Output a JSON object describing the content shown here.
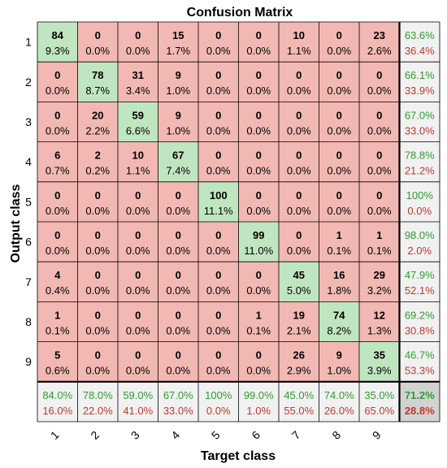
{
  "chart_data": {
    "type": "heatmap",
    "title": "Confusion Matrix",
    "xlabel": "Target class",
    "ylabel": "Output class",
    "x_tick_labels": [
      "1",
      "2",
      "3",
      "4",
      "5",
      "6",
      "7",
      "8",
      "9"
    ],
    "y_tick_labels": [
      "1",
      "2",
      "3",
      "4",
      "5",
      "6",
      "7",
      "8",
      "9"
    ],
    "counts": [
      [
        84,
        0,
        0,
        15,
        0,
        0,
        10,
        0,
        23
      ],
      [
        0,
        78,
        31,
        9,
        0,
        0,
        0,
        0,
        0
      ],
      [
        0,
        20,
        59,
        9,
        0,
        0,
        0,
        0,
        0
      ],
      [
        6,
        2,
        10,
        67,
        0,
        0,
        0,
        0,
        0
      ],
      [
        0,
        0,
        0,
        0,
        100,
        0,
        0,
        0,
        0
      ],
      [
        0,
        0,
        0,
        0,
        0,
        99,
        0,
        1,
        1
      ],
      [
        4,
        0,
        0,
        0,
        0,
        0,
        45,
        16,
        29
      ],
      [
        1,
        0,
        0,
        0,
        0,
        1,
        19,
        74,
        12
      ],
      [
        5,
        0,
        0,
        0,
        0,
        0,
        26,
        9,
        35
      ]
    ],
    "percents": [
      [
        "9.3%",
        "0.0%",
        "0.0%",
        "1.7%",
        "0.0%",
        "0.0%",
        "1.1%",
        "0.0%",
        "2.6%"
      ],
      [
        "0.0%",
        "8.7%",
        "3.4%",
        "1.0%",
        "0.0%",
        "0.0%",
        "0.0%",
        "0.0%",
        "0.0%"
      ],
      [
        "0.0%",
        "2.2%",
        "6.6%",
        "1.0%",
        "0.0%",
        "0.0%",
        "0.0%",
        "0.0%",
        "0.0%"
      ],
      [
        "0.7%",
        "0.2%",
        "1.1%",
        "7.4%",
        "0.0%",
        "0.0%",
        "0.0%",
        "0.0%",
        "0.0%"
      ],
      [
        "0.0%",
        "0.0%",
        "0.0%",
        "0.0%",
        "11.1%",
        "0.0%",
        "0.0%",
        "0.0%",
        "0.0%"
      ],
      [
        "0.0%",
        "0.0%",
        "0.0%",
        "0.0%",
        "0.0%",
        "11.0%",
        "0.0%",
        "0.1%",
        "0.1%"
      ],
      [
        "0.4%",
        "0.0%",
        "0.0%",
        "0.0%",
        "0.0%",
        "0.0%",
        "5.0%",
        "1.8%",
        "3.2%"
      ],
      [
        "0.1%",
        "0.0%",
        "0.0%",
        "0.0%",
        "0.0%",
        "0.1%",
        "2.1%",
        "8.2%",
        "1.3%"
      ],
      [
        "0.6%",
        "0.0%",
        "0.0%",
        "0.0%",
        "0.0%",
        "0.0%",
        "2.9%",
        "1.0%",
        "3.9%"
      ]
    ],
    "row_summary": [
      [
        "63.6%",
        "36.4%"
      ],
      [
        "66.1%",
        "33.9%"
      ],
      [
        "67.0%",
        "33.0%"
      ],
      [
        "78.8%",
        "21.2%"
      ],
      [
        "100%",
        "0.0%"
      ],
      [
        "98.0%",
        "2.0%"
      ],
      [
        "47.9%",
        "52.1%"
      ],
      [
        "69.2%",
        "30.8%"
      ],
      [
        "46.7%",
        "53.3%"
      ]
    ],
    "col_summary": [
      [
        "84.0%",
        "16.0%"
      ],
      [
        "78.0%",
        "22.0%"
      ],
      [
        "59.0%",
        "41.0%"
      ],
      [
        "67.0%",
        "33.0%"
      ],
      [
        "100%",
        "0.0%"
      ],
      [
        "99.0%",
        "1.0%"
      ],
      [
        "45.0%",
        "55.0%"
      ],
      [
        "74.0%",
        "26.0%"
      ],
      [
        "35.0%",
        "65.0%"
      ]
    ],
    "overall": [
      "71.2%",
      "28.8%"
    ],
    "colors": {
      "correct_cell": "#bfe6c0",
      "incorrect_cell": "#f2b8b3",
      "summary_cell": "#f1f1f1",
      "overall_cell": "#d2d2d2",
      "correct_text": "#2f9d2f",
      "error_text": "#c0392b",
      "grid_line": "#000000",
      "text": "#000000"
    }
  }
}
